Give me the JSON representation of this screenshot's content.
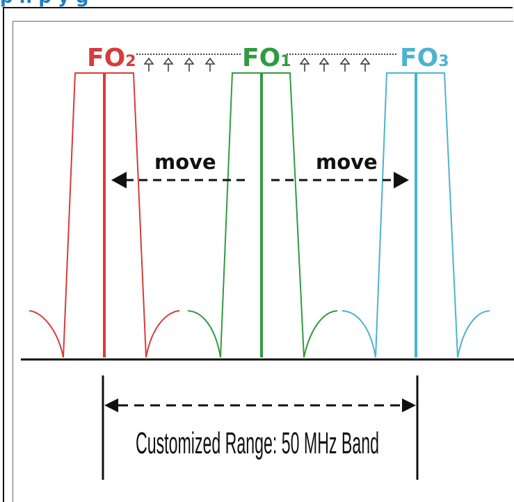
{
  "header": {
    "text": "p  n    p  y                    g"
  },
  "colors": {
    "fo2": "#d93a3a",
    "fo1": "#2f9b3f",
    "fo3": "#4cb3cf",
    "ink": "#111111",
    "heading": "#1f7fbf"
  },
  "labels": {
    "fo2": {
      "main": "FO",
      "sub": "2"
    },
    "fo1": {
      "main": "FO",
      "sub": "1"
    },
    "fo3": {
      "main": "FO",
      "sub": "3"
    },
    "move_left": "move",
    "move_right": "move",
    "range": "Customized Range: 50 MHz Band"
  }
}
